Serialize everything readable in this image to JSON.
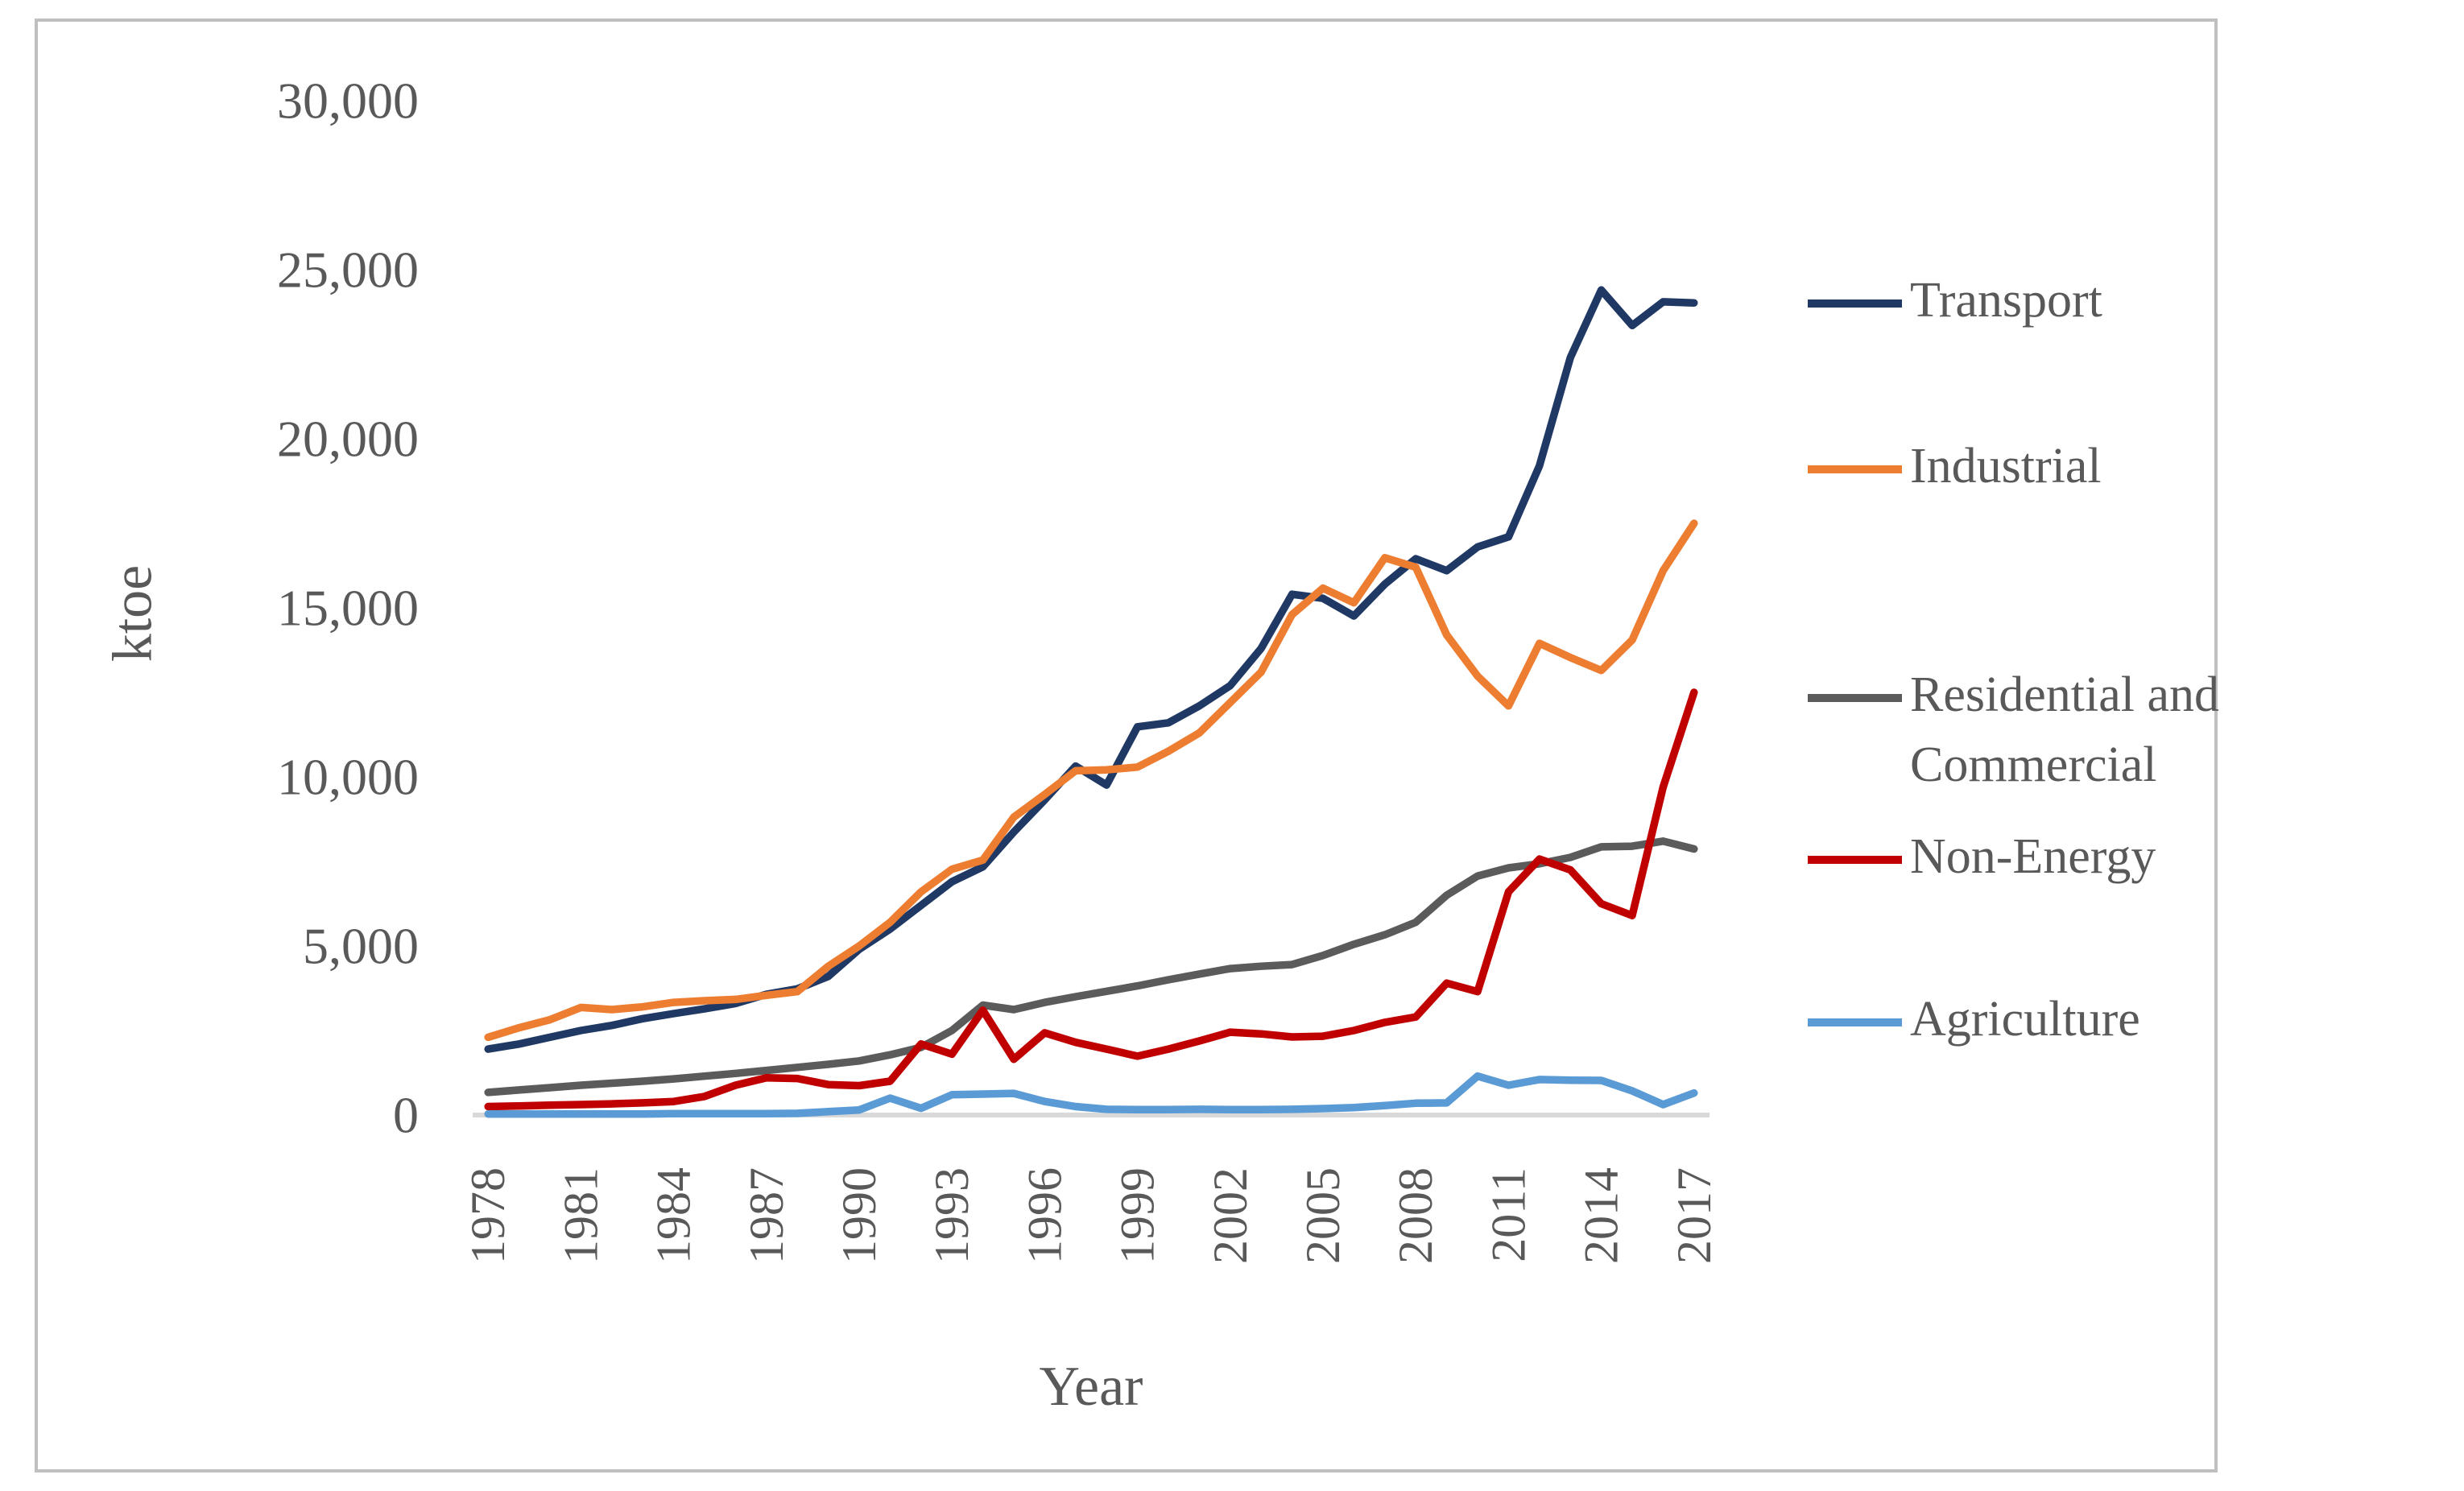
{
  "figure": {
    "y_axis_title": "ktoe",
    "x_axis_title": "Year",
    "background": "#ffffff",
    "border_color": "#bfbfbf",
    "baseline_color": "#d9d9d9",
    "text_color": "#595959"
  },
  "y_axis": {
    "tick_labels": [
      "0",
      "5,000",
      "10,000",
      "15,000",
      "20,000",
      "25,000",
      "30,000"
    ],
    "tick_values": [
      0,
      5000,
      10000,
      15000,
      20000,
      25000,
      30000
    ]
  },
  "x_axis": {
    "tick_years": [
      1978,
      1981,
      1984,
      1987,
      1990,
      1993,
      1996,
      1999,
      2002,
      2005,
      2008,
      2011,
      2014,
      2017
    ]
  },
  "legend": [
    {
      "label_lines": [
        "Transport"
      ],
      "color": "#1F3864",
      "y": 377
    },
    {
      "label_lines": [
        "Industrial"
      ],
      "color": "#ED7D31",
      "y": 583
    },
    {
      "label_lines": [
        "Residential and",
        "Commercial"
      ],
      "color": "#5B5B5B",
      "y": 867
    },
    {
      "label_lines": [
        "Non-Energy"
      ],
      "color": "#C00000",
      "y": 1068
    },
    {
      "label_lines": [
        "Agriculture"
      ],
      "color": "#5B9BD5",
      "y": 1270
    }
  ],
  "chart_data": {
    "type": "line",
    "title": "",
    "xlabel": "Year",
    "ylabel": "ktoe",
    "ylim": [
      0,
      30000
    ],
    "grid": false,
    "legend_position": "right",
    "x": [
      1978,
      1979,
      1980,
      1981,
      1982,
      1983,
      1984,
      1985,
      1986,
      1987,
      1988,
      1989,
      1990,
      1991,
      1992,
      1993,
      1994,
      1995,
      1996,
      1997,
      1998,
      1999,
      2000,
      2001,
      2002,
      2003,
      2004,
      2005,
      2006,
      2007,
      2008,
      2009,
      2010,
      2011,
      2012,
      2013,
      2014,
      2015,
      2016,
      2017
    ],
    "series": [
      {
        "name": "Transport",
        "color": "#1F3864",
        "values": [
          1950,
          2100,
          2300,
          2500,
          2650,
          2850,
          3000,
          3140,
          3300,
          3570,
          3730,
          4100,
          4900,
          5500,
          6200,
          6900,
          7340,
          8370,
          9320,
          10320,
          9760,
          11480,
          11600,
          12100,
          12700,
          13800,
          15400,
          15280,
          14760,
          15700,
          16450,
          16100,
          16800,
          17100,
          19200,
          22400,
          24400,
          23350,
          24050,
          24020
        ]
      },
      {
        "name": "Industrial",
        "color": "#ED7D31",
        "values": [
          2300,
          2580,
          2820,
          3180,
          3120,
          3200,
          3330,
          3380,
          3420,
          3540,
          3650,
          4400,
          5000,
          5700,
          6600,
          7270,
          7540,
          8810,
          9480,
          10180,
          10210,
          10290,
          10760,
          11300,
          12200,
          13100,
          14800,
          15580,
          15150,
          16480,
          16200,
          14200,
          12980,
          12100,
          13950,
          13530,
          13150,
          14050,
          16100,
          17500
        ]
      },
      {
        "name": "Residential and Commercial",
        "color": "#5B5B5B",
        "values": [
          670,
          740,
          810,
          880,
          940,
          1000,
          1070,
          1150,
          1230,
          1320,
          1410,
          1500,
          1600,
          1780,
          2000,
          2500,
          3250,
          3120,
          3330,
          3500,
          3660,
          3820,
          4000,
          4170,
          4330,
          4400,
          4450,
          4720,
          5050,
          5330,
          5700,
          6500,
          7070,
          7310,
          7430,
          7620,
          7930,
          7950,
          8100,
          7870
        ]
      },
      {
        "name": "Non-Energy",
        "color": "#C00000",
        "values": [
          250,
          270,
          290,
          310,
          330,
          360,
          400,
          550,
          880,
          1100,
          1080,
          900,
          870,
          1000,
          2100,
          1800,
          3100,
          1650,
          2430,
          2150,
          1950,
          1740,
          1950,
          2190,
          2450,
          2400,
          2310,
          2330,
          2500,
          2740,
          2900,
          3900,
          3650,
          6600,
          7570,
          7250,
          6250,
          5900,
          9700,
          12500
        ]
      },
      {
        "name": "Agriculture",
        "color": "#5B9BD5",
        "values": [
          30,
          30,
          30,
          30,
          30,
          30,
          40,
          40,
          40,
          40,
          50,
          100,
          150,
          500,
          200,
          600,
          620,
          640,
          400,
          250,
          170,
          160,
          160,
          170,
          160,
          160,
          170,
          190,
          220,
          280,
          350,
          360,
          1150,
          880,
          1050,
          1030,
          1025,
          715,
          310,
          650
        ]
      }
    ]
  }
}
